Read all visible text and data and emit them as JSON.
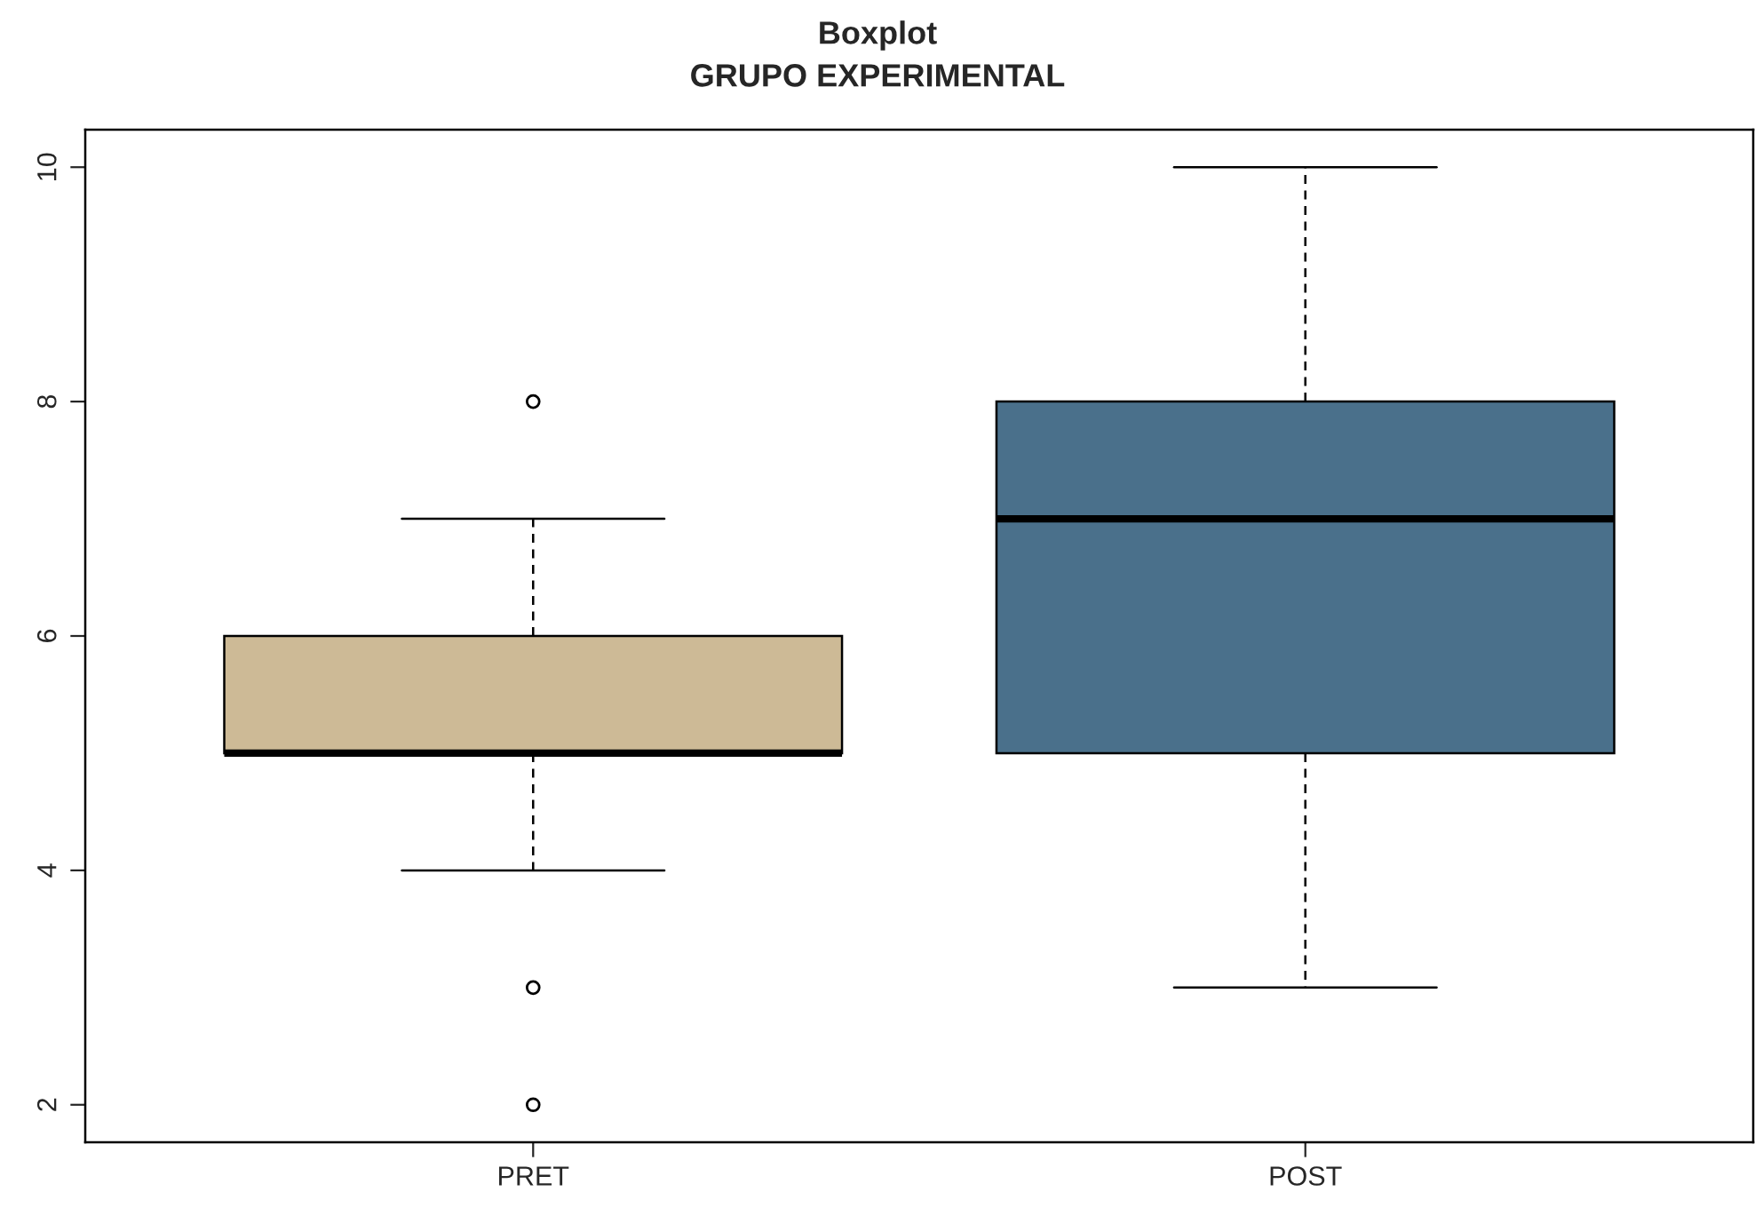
{
  "chart_data": {
    "type": "box",
    "title": "Boxplot",
    "subtitle": "GRUPO EXPERIMENTAL",
    "categories": [
      "PRET",
      "POST"
    ],
    "boxes": [
      {
        "low": 4,
        "q1": 5,
        "median": 5,
        "q3": 6,
        "high": 7,
        "outliers": [
          8,
          3,
          2
        ]
      },
      {
        "low": 3,
        "q1": 5,
        "median": 7,
        "q3": 8,
        "high": 10
      }
    ],
    "colors": [
      "#cdba96",
      "#4a708b"
    ],
    "ylim": [
      1.68,
      10.32
    ],
    "yticks": [
      2,
      4,
      6,
      8,
      10
    ]
  }
}
